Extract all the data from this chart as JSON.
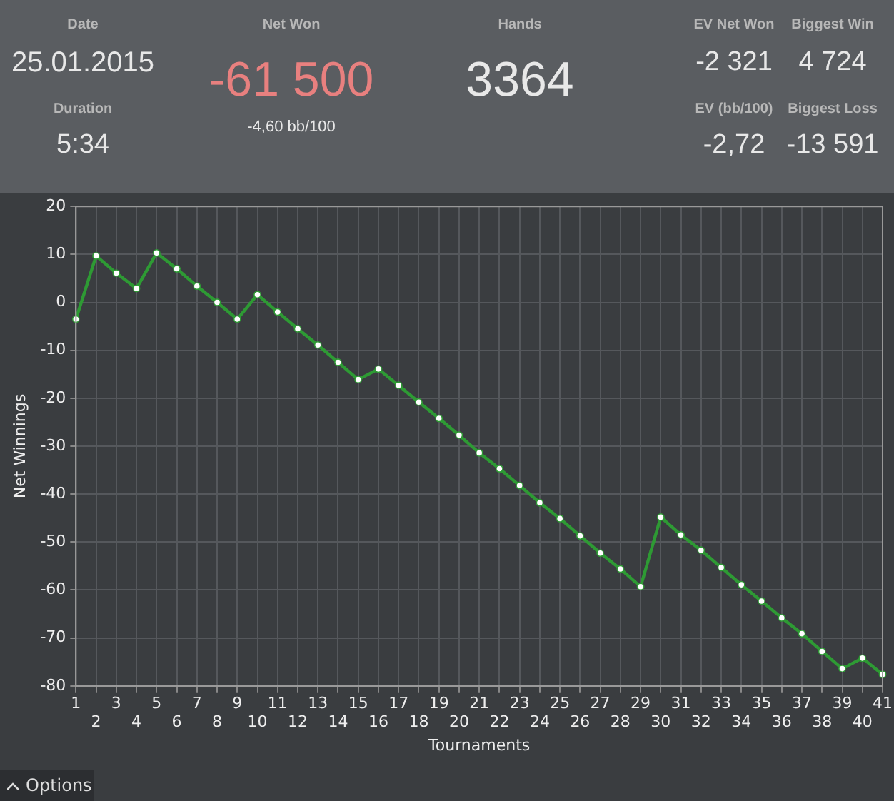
{
  "chart_data": {
    "type": "line",
    "xlabel": "Tournaments",
    "ylabel": "Net Winnings",
    "categories": [
      "1",
      "2",
      "3",
      "4",
      "5",
      "6",
      "7",
      "8",
      "9",
      "10",
      "11",
      "12",
      "13",
      "14",
      "15",
      "16",
      "17",
      "18",
      "19",
      "20",
      "21",
      "22",
      "23",
      "24",
      "25",
      "26",
      "27",
      "28",
      "29",
      "30",
      "31",
      "32",
      "33",
      "34",
      "35",
      "36",
      "37",
      "38",
      "39",
      "40",
      "41"
    ],
    "series": [
      {
        "color": "#2e9a34",
        "values": [
          -3.5,
          9.7,
          6.1,
          2.9,
          10.3,
          7.0,
          3.4,
          0,
          -3.5,
          1.6,
          -2.0,
          -5.5,
          -8.9,
          -12.5,
          -16.1,
          -13.9,
          -17.3,
          -20.8,
          -24.2,
          -27.7,
          -31.4,
          -34.7,
          -38.2,
          -41.8,
          -45.1,
          -48.7,
          -52.3,
          -55.6,
          -59.3,
          -44.8,
          -48.5,
          -51.7,
          -55.3,
          -58.9,
          -62.3,
          -65.8,
          -69.1,
          -72.8,
          -76.4,
          -74.2,
          -77.6
        ]
      }
    ],
    "ylim": [
      -80,
      20
    ],
    "yticks": [
      -80,
      -70,
      -60,
      -50,
      -40,
      -30,
      -20,
      -10,
      0,
      10,
      20
    ],
    "grid": true,
    "legend": false,
    "marker": "circle",
    "line_style": "solid",
    "annotations": [
      "Date",
      "25.01.2015",
      "Duration",
      "5:34",
      "Net Won",
      "-61 500",
      "-4,60 bb/100",
      "Hands",
      "3364",
      "EV Net Won",
      "-2 321",
      "EV (bb/100)",
      "-2,72",
      "Biggest Win",
      "4 724",
      "Biggest Loss",
      "-13 591",
      "Options"
    ]
  }
}
